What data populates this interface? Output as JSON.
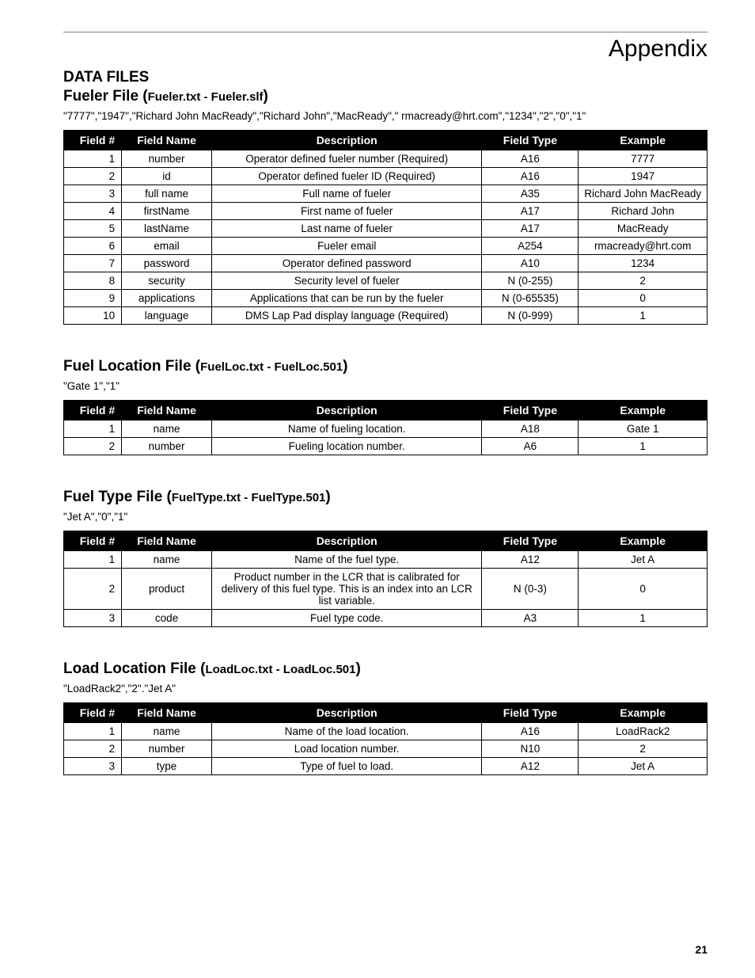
{
  "header": {
    "title": "Appendix"
  },
  "page_number": "21",
  "columns": {
    "field_no": "Field #",
    "field_name": "Field Name",
    "description": "Description",
    "field_type": "Field Type",
    "example": "Example"
  },
  "section_label": "DATA FILES",
  "tables": [
    {
      "title_main": "Fueler File (",
      "title_sub": "Fueler.txt - Fueler.slf",
      "title_end": ")",
      "sample": "\"7777\",\"1947\",\"Richard John MacReady\",\"Richard John\",\"MacReady\",\" rmacready@hrt.com\",\"1234\",\"2\",\"0\",\"1\"",
      "rows": [
        {
          "n": "1",
          "name": "number",
          "desc": "Operator defined fueler number (Required)",
          "type": "A16",
          "ex": "7777"
        },
        {
          "n": "2",
          "name": "id",
          "desc": "Operator defined fueler ID (Required)",
          "type": "A16",
          "ex": "1947"
        },
        {
          "n": "3",
          "name": "full name",
          "desc": "Full name of fueler",
          "type": "A35",
          "ex": "Richard John MacReady"
        },
        {
          "n": "4",
          "name": "firstName",
          "desc": "First name of fueler",
          "type": "A17",
          "ex": "Richard John"
        },
        {
          "n": "5",
          "name": "lastName",
          "desc": "Last name of fueler",
          "type": "A17",
          "ex": "MacReady"
        },
        {
          "n": "6",
          "name": "email",
          "desc": "Fueler email",
          "type": "A254",
          "ex": "rmacready@hrt.com"
        },
        {
          "n": "7",
          "name": "password",
          "desc": "Operator defined password",
          "type": "A10",
          "ex": "1234"
        },
        {
          "n": "8",
          "name": "security",
          "desc": "Security level of fueler",
          "type": "N (0-255)",
          "ex": "2"
        },
        {
          "n": "9",
          "name": "applications",
          "desc": "Applications that can be run by the fueler",
          "type": "N (0-65535)",
          "ex": "0"
        },
        {
          "n": "10",
          "name": "language",
          "desc": "DMS Lap Pad display language (Required)",
          "type": "N (0-999)",
          "ex": "1"
        }
      ]
    },
    {
      "title_main": "Fuel Location File (",
      "title_sub": "FuelLoc.txt - FuelLoc.501",
      "title_end": ")",
      "sample": "\"Gate 1\",\"1\"",
      "rows": [
        {
          "n": "1",
          "name": "name",
          "desc": "Name of fueling location.",
          "type": "A18",
          "ex": "Gate 1"
        },
        {
          "n": "2",
          "name": "number",
          "desc": "Fueling location number.",
          "type": "A6",
          "ex": "1"
        }
      ]
    },
    {
      "title_main": "Fuel Type File (",
      "title_sub": "FuelType.txt - FuelType.501",
      "title_end": ")",
      "sample": "\"Jet A\",\"0\",\"1\"",
      "rows": [
        {
          "n": "1",
          "name": "name",
          "desc": "Name of the fuel type.",
          "type": "A12",
          "ex": "Jet A"
        },
        {
          "n": "2",
          "name": "product",
          "desc": "Product number in the LCR that is calibrated for delivery of this fuel type. This is an index into an LCR list variable.",
          "type": "N (0-3)",
          "ex": "0"
        },
        {
          "n": "3",
          "name": "code",
          "desc": "Fuel type code.",
          "type": "A3",
          "ex": "1"
        }
      ]
    },
    {
      "title_main": "Load Location File (",
      "title_sub": "LoadLoc.txt - LoadLoc.501",
      "title_end": ")",
      "sample": "\"LoadRack2\",\"2\".\"Jet A\"",
      "rows": [
        {
          "n": "1",
          "name": "name",
          "desc": "Name of the load location.",
          "type": "A16",
          "ex": "LoadRack2"
        },
        {
          "n": "2",
          "name": "number",
          "desc": "Load location number.",
          "type": "N10",
          "ex": "2"
        },
        {
          "n": "3",
          "name": "type",
          "desc": "Type of fuel to load.",
          "type": "A12",
          "ex": "Jet A"
        }
      ]
    }
  ]
}
